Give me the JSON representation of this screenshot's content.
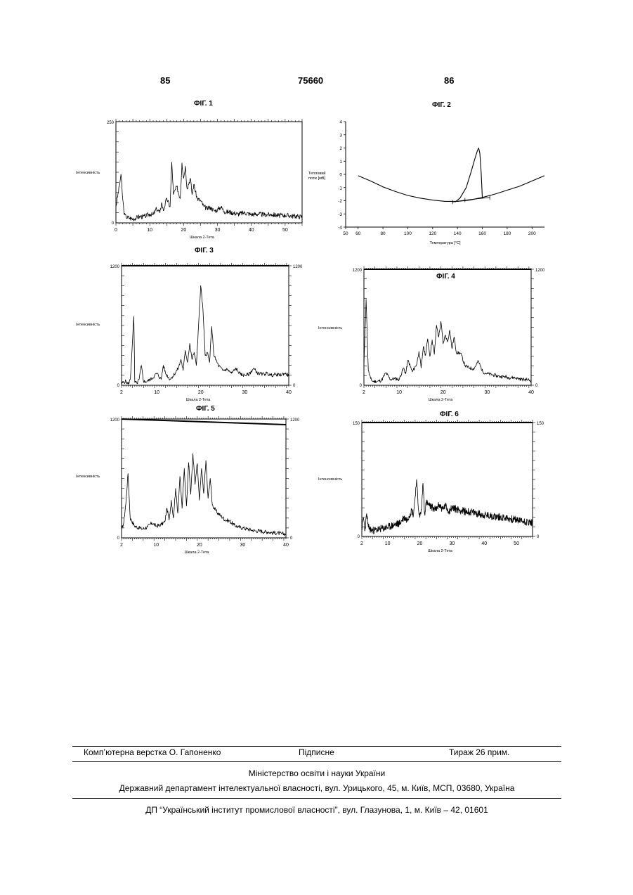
{
  "header": {
    "left_page": "85",
    "patent_number": "75660",
    "right_page": "86"
  },
  "figures": [
    {
      "title": "ФІГ. 1",
      "ylabel": "Інтенсивність",
      "xlabel": "Шкала 2-Тета",
      "y_max_label": "250",
      "y_zero_label": "0",
      "right_axis": false,
      "x_ticks": [
        "0",
        "10",
        "20",
        "30",
        "40",
        "50"
      ]
    },
    {
      "title": "ФІГ. 2",
      "ylabel_line1": "Тепловий",
      "ylabel_line2": "потік [мВ]",
      "xlabel": "Температура [°C]",
      "y_ticks": [
        "4",
        "3",
        "2",
        "1",
        "0",
        "-1",
        "-2",
        "-3",
        "-4"
      ],
      "x_ticks": [
        "50",
        "60",
        "80",
        "100",
        "120",
        "140",
        "160",
        "180",
        "200"
      ]
    },
    {
      "title": "ФІГ. 3",
      "ylabel": "Інтенсивність",
      "xlabel": "Шкала 2-Тета",
      "y_max_label": "1200",
      "y_zero_label": "0",
      "right_axis": true,
      "x_ticks": [
        "2",
        "10",
        "20",
        "30",
        "40"
      ]
    },
    {
      "title": "ФІГ. 4",
      "ylabel": "Інтенсивність",
      "xlabel": "Шкала 2-Тета",
      "y_max_label": "1200",
      "y_zero_label": "0",
      "right_axis": true,
      "x_ticks": [
        "2",
        "10",
        "20",
        "30",
        "40"
      ]
    },
    {
      "title": "ФІГ. 5",
      "ylabel": "Інтенсивність",
      "xlabel": "Шкала 2-Тета",
      "y_max_label": "1200",
      "y_zero_label": "0",
      "right_axis": true,
      "x_ticks": [
        "2",
        "10",
        "20",
        "30",
        "40"
      ]
    },
    {
      "title": "ФІГ. 6",
      "ylabel": "Інтенсивність",
      "xlabel": "Шкала 2-Тета",
      "y_max_label": "150",
      "y_zero_label": "0",
      "right_axis": true,
      "x_ticks": [
        "2",
        "10",
        "20",
        "30",
        "40",
        "50"
      ]
    }
  ],
  "footer": {
    "layout": "Комп’ютерна верстка О. Гапоненко",
    "signed": "Підписне",
    "circulation": "Тираж 26 прим.",
    "ministry": "Міністерство освіти і науки України",
    "department": "Державний департамент інтелектуальної власності, вул. Урицького, 45, м. Київ, МСП, 03680, Україна",
    "institute": "ДП “Український інститут промислової власності”, вул. Глазунова, 1, м. Київ – 42, 01601"
  },
  "chart_data": [
    {
      "type": "line",
      "title": "ФІГ. 1",
      "xlabel": "Шкала 2-Тета",
      "ylabel": "Інтенсивність",
      "xlim": [
        0,
        55
      ],
      "ylim": [
        0,
        250
      ],
      "x": [
        0,
        1,
        1.5,
        2,
        2.5,
        3,
        4,
        5,
        6,
        7,
        8,
        9,
        10,
        11,
        12,
        13,
        13.5,
        14,
        15,
        16,
        16.5,
        17,
        18,
        19,
        19.5,
        20,
        20.5,
        21,
        22,
        22.5,
        23,
        24,
        25,
        26,
        27,
        28,
        29,
        30,
        31,
        32,
        34,
        36,
        38,
        40,
        42,
        44,
        46,
        48,
        50,
        52,
        54,
        55
      ],
      "y": [
        40,
        90,
        120,
        60,
        20,
        15,
        12,
        10,
        12,
        16,
        15,
        18,
        22,
        20,
        35,
        25,
        50,
        30,
        60,
        40,
        150,
        70,
        90,
        60,
        148,
        110,
        140,
        85,
        110,
        70,
        95,
        60,
        55,
        40,
        35,
        38,
        30,
        32,
        40,
        28,
        26,
        22,
        25,
        21,
        22,
        20,
        21,
        18,
        19,
        17,
        16,
        15
      ]
    },
    {
      "type": "line",
      "title": "ФІГ. 2",
      "xlabel": "Температура [°C]",
      "ylabel": "Тепловий потік [мВ]",
      "xlim": [
        50,
        210
      ],
      "ylim": [
        -4,
        4
      ],
      "series": [
        {
          "x": [
            60,
            70,
            80,
            90,
            100,
            110,
            120,
            130,
            140,
            150,
            160,
            170,
            180,
            190,
            200,
            210
          ],
          "y": [
            -0.1,
            -0.5,
            -0.95,
            -1.3,
            -1.6,
            -1.8,
            -1.95,
            -2.05,
            -2.05,
            -1.95,
            -1.75,
            -1.5,
            -1.2,
            -0.9,
            -0.5,
            -0.1
          ]
        },
        {
          "x": [
            138,
            142,
            147,
            151,
            154,
            156,
            157,
            158,
            159,
            160
          ],
          "y": [
            -2.1,
            -1.8,
            -1.0,
            0.2,
            1.2,
            1.8,
            2.0,
            1.6,
            0.2,
            -1.8
          ]
        },
        {
          "x": [
            136,
            146,
            166
          ],
          "y": [
            -2.1,
            -1.95,
            -1.75
          ]
        }
      ]
    },
    {
      "type": "line",
      "title": "ФІГ. 3",
      "xlabel": "Шкала 2-Тета",
      "ylabel": "Інтенсивність",
      "xlim": [
        2,
        40
      ],
      "ylim": [
        0,
        1200
      ],
      "x": [
        2,
        3,
        3.5,
        4,
        4.8,
        5,
        5.5,
        6,
        6.5,
        7,
        7.5,
        8,
        9,
        10,
        11,
        11.5,
        12,
        13,
        14,
        15,
        15.5,
        16,
        16.5,
        17,
        17.5,
        18,
        18.5,
        19,
        19.5,
        20,
        20.5,
        21,
        21.5,
        22,
        22.5,
        23,
        24,
        25,
        26,
        27,
        28,
        29,
        30,
        31,
        32,
        33,
        34,
        35,
        36,
        37,
        38,
        39,
        40
      ],
      "y": [
        20,
        40,
        10,
        60,
        690,
        30,
        20,
        60,
        200,
        40,
        35,
        45,
        70,
        120,
        60,
        200,
        120,
        60,
        110,
        180,
        260,
        150,
        350,
        230,
        420,
        260,
        330,
        200,
        600,
        1000,
        760,
        300,
        330,
        230,
        590,
        300,
        200,
        150,
        160,
        120,
        170,
        110,
        100,
        110,
        170,
        120,
        110,
        120,
        100,
        110,
        100,
        120,
        100
      ]
    },
    {
      "type": "line",
      "title": "ФІГ. 4",
      "xlabel": "Шкала 2-Тета",
      "ylabel": "Інтенсивність",
      "xlim": [
        2,
        40
      ],
      "ylim": [
        0,
        1200
      ],
      "x": [
        2,
        2.5,
        3,
        3.5,
        4,
        5,
        6,
        7,
        8,
        9,
        10,
        11,
        11.5,
        12,
        13,
        14,
        14.5,
        15,
        15.5,
        16,
        16.5,
        17,
        17.5,
        18,
        18.5,
        19,
        19.5,
        20,
        20.5,
        21,
        21.5,
        22,
        22.5,
        23,
        24,
        25,
        26,
        27,
        28,
        29,
        30,
        31,
        32,
        33,
        34,
        35,
        36,
        37,
        38,
        39,
        40
      ],
      "y": [
        200,
        890,
        150,
        70,
        40,
        40,
        50,
        130,
        60,
        70,
        60,
        180,
        120,
        260,
        140,
        220,
        350,
        180,
        400,
        310,
        480,
        300,
        470,
        320,
        620,
        500,
        660,
        430,
        520,
        450,
        570,
        380,
        500,
        340,
        330,
        200,
        180,
        170,
        250,
        140,
        120,
        110,
        100,
        90,
        90,
        80,
        80,
        70,
        60,
        60,
        50
      ]
    },
    {
      "type": "line",
      "title": "ФІГ. 5",
      "xlabel": "Шкала 2-Тета",
      "ylabel": "Інтенсивність",
      "xlim": [
        2,
        40
      ],
      "ylim": [
        0,
        1200
      ],
      "x": [
        2,
        2.5,
        3,
        3.5,
        4,
        5,
        6,
        7,
        8,
        9,
        10,
        11,
        12,
        12.5,
        13,
        13.5,
        14,
        14.5,
        15,
        15.5,
        16,
        16.5,
        17,
        17.5,
        18,
        18.5,
        19,
        19.5,
        20,
        20.5,
        21,
        21.5,
        22,
        22.5,
        23,
        24,
        25,
        26,
        27,
        28,
        29,
        30,
        31,
        32,
        33,
        34,
        35,
        36,
        37,
        38,
        39,
        40
      ],
      "y": [
        80,
        150,
        350,
        650,
        200,
        120,
        100,
        90,
        110,
        150,
        120,
        130,
        160,
        300,
        180,
        380,
        200,
        500,
        250,
        620,
        300,
        700,
        320,
        760,
        440,
        850,
        540,
        750,
        380,
        700,
        450,
        780,
        400,
        600,
        330,
        260,
        220,
        180,
        170,
        130,
        110,
        100,
        90,
        80,
        70,
        70,
        60,
        60,
        50,
        50,
        40,
        40
      ]
    },
    {
      "type": "line",
      "title": "ФІГ. 6",
      "xlabel": "Шкала 2-Тета",
      "ylabel": "Інтенсивність",
      "xlim": [
        2,
        55
      ],
      "ylim": [
        0,
        150
      ],
      "x": [
        2,
        2.5,
        3,
        3.5,
        4,
        5,
        6,
        8,
        10,
        12,
        14,
        15,
        16,
        17,
        17.5,
        18,
        18.5,
        19,
        19.5,
        20,
        20.5,
        21,
        21.5,
        22,
        23,
        24,
        25,
        26,
        27,
        28,
        29,
        30,
        32,
        34,
        36,
        38,
        40,
        42,
        44,
        46,
        48,
        50,
        52,
        55
      ],
      "y": [
        10,
        25,
        8,
        30,
        12,
        8,
        8,
        10,
        12,
        15,
        18,
        25,
        22,
        30,
        35,
        28,
        50,
        75,
        40,
        25,
        35,
        70,
        30,
        45,
        40,
        38,
        35,
        42,
        36,
        40,
        33,
        38,
        35,
        33,
        32,
        30,
        28,
        27,
        26,
        25,
        23,
        22,
        20,
        18
      ]
    }
  ]
}
